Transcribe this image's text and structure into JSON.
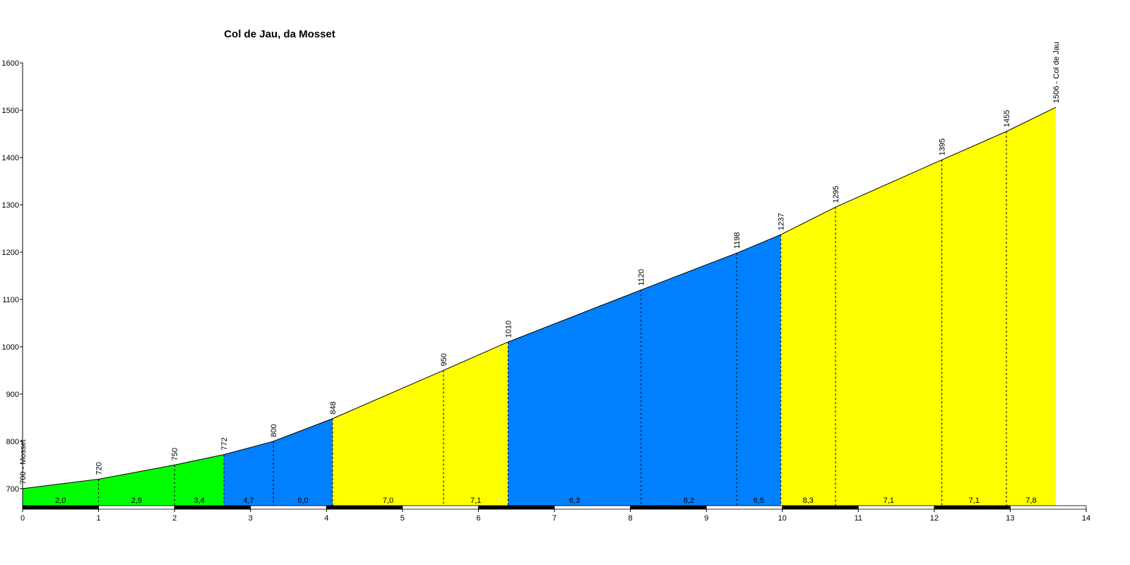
{
  "chart_data": {
    "type": "elevation-profile",
    "title": "Col de Jau, da Mosset",
    "x": [
      0,
      1.0,
      2.0,
      2.65,
      3.3,
      4.08,
      5.54,
      6.39,
      8.14,
      9.4,
      9.98,
      10.7,
      12.1,
      12.95,
      13.6
    ],
    "values": [
      700,
      720,
      750,
      772,
      800,
      848,
      950,
      1010,
      1120,
      1198,
      1237,
      1295,
      1395,
      1455,
      1506
    ],
    "value_labels": [
      "700 - Mosset",
      "720",
      "750",
      "772",
      "800",
      "848",
      "950",
      "1010",
      "1120",
      "1198",
      "1237",
      "1295",
      "1395",
      "1455",
      "1506 - Col de Jau"
    ],
    "gradients": [
      2.0,
      2.9,
      3.4,
      4.7,
      6.0,
      7.0,
      7.1,
      6.3,
      6.2,
      6.5,
      8.3,
      7.1,
      7.1,
      7.8
    ],
    "gradient_labels": [
      "2,0",
      "2,9",
      "3,4",
      "4,7",
      "6,0",
      "7,0",
      "7,1",
      "6,3",
      "6,2",
      "6,5",
      "8,3",
      "7,1",
      "7,1",
      "7,8"
    ],
    "segment_colors": [
      "#00ff00",
      "#00ff00",
      "#00ff00",
      "#0080ff",
      "#0080ff",
      "#ffff00",
      "#ffff00",
      "#0080ff",
      "#0080ff",
      "#0080ff",
      "#ffff00",
      "#ffff00",
      "#ffff00",
      "#ffff00"
    ],
    "xlim": [
      0,
      14
    ],
    "xticks": [
      0,
      1,
      2,
      3,
      4,
      5,
      6,
      7,
      8,
      9,
      10,
      11,
      12,
      13,
      14
    ],
    "ylim": [
      664,
      1600
    ],
    "yticks": [
      700,
      800,
      900,
      1000,
      1100,
      1200,
      1300,
      1400,
      1500,
      1600
    ]
  }
}
